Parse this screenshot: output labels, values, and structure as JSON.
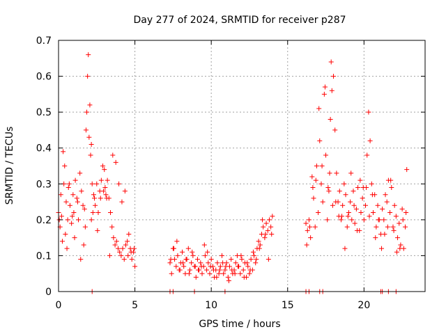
{
  "chart_data": {
    "type": "scatter",
    "title": "Day 277 of 2024, SRMTID for receiver p287",
    "xlabel": "GPS time / hours",
    "ylabel": "SRMTID / TECUs",
    "xlim": [
      0,
      24
    ],
    "ylim": [
      0,
      0.7
    ],
    "xticks": [
      0,
      5,
      10,
      15,
      20
    ],
    "yticks": [
      0,
      0.1,
      0.2,
      0.3,
      0.4,
      0.5,
      0.6,
      0.7
    ],
    "xtick_labels": [
      "0",
      "5",
      "10",
      "15",
      "20"
    ],
    "ytick_labels": [
      "0",
      "0.1",
      "0.2",
      "0.3",
      "0.4",
      "0.5",
      "0.6",
      "0.7"
    ],
    "grid": true,
    "marker": "+",
    "color": "#ff0000",
    "series": [
      {
        "name": "SRMTID",
        "x": [
          0.0,
          0.1,
          0.15,
          0.25,
          0.3,
          0.35,
          0.45,
          0.5,
          0.6,
          0.65,
          0.75,
          0.85,
          0.95,
          1.0,
          1.1,
          1.2,
          1.3,
          1.4,
          1.5,
          1.6,
          1.7,
          1.8,
          1.85,
          1.9,
          1.95,
          2.0,
          2.05,
          2.1,
          2.15,
          2.2,
          2.25,
          2.3,
          2.4,
          2.5,
          2.6,
          2.7,
          2.8,
          2.9,
          3.0,
          3.05,
          3.1,
          3.2,
          3.3,
          3.4,
          3.5,
          3.6,
          3.7,
          3.8,
          3.9,
          4.0,
          4.1,
          4.2,
          4.3,
          4.4,
          4.5,
          4.6,
          4.7,
          4.8,
          4.9,
          5.0,
          7.3,
          7.4,
          7.5,
          7.6,
          7.7,
          7.8,
          7.9,
          8.0,
          8.1,
          8.2,
          8.3,
          8.4,
          8.5,
          8.6,
          8.7,
          8.8,
          8.9,
          9.0,
          9.1,
          9.2,
          9.3,
          9.4,
          9.5,
          9.6,
          9.7,
          9.8,
          9.9,
          10.0,
          10.1,
          10.2,
          10.3,
          10.4,
          10.5,
          10.6,
          10.7,
          10.8,
          10.9,
          11.0,
          11.1,
          11.2,
          11.3,
          11.4,
          11.5,
          11.6,
          11.7,
          11.8,
          11.9,
          12.0,
          12.1,
          12.2,
          12.3,
          12.4,
          12.5,
          12.6,
          12.7,
          12.8,
          12.9,
          13.0,
          13.1,
          13.2,
          13.3,
          13.4,
          13.5,
          13.6,
          13.7,
          13.8,
          13.9,
          14.0,
          16.2,
          16.3,
          16.4,
          16.5,
          16.6,
          16.7,
          16.8,
          16.9,
          17.0,
          17.1,
          17.2,
          17.3,
          17.4,
          17.5,
          17.6,
          17.7,
          17.75,
          17.8,
          17.85,
          17.9,
          18.0,
          18.1,
          18.2,
          18.3,
          18.4,
          18.5,
          18.6,
          18.7,
          18.8,
          18.9,
          19.0,
          19.1,
          19.2,
          19.3,
          19.4,
          19.5,
          19.6,
          19.7,
          19.8,
          19.9,
          20.0,
          20.1,
          20.2,
          20.3,
          20.4,
          20.5,
          20.6,
          20.7,
          20.8,
          20.9,
          21.0,
          21.1,
          21.2,
          21.3,
          21.4,
          21.5,
          21.6,
          21.7,
          21.8,
          21.9,
          22.0,
          22.1,
          22.2,
          22.3,
          22.4,
          22.5,
          22.6,
          22.7,
          22.8,
          0.05,
          0.2,
          0.4,
          0.55,
          0.7,
          0.9,
          1.05,
          1.25,
          1.45,
          1.65,
          1.75,
          2.15,
          2.35,
          2.55,
          2.75,
          2.95,
          3.15,
          3.35,
          3.55,
          3.75,
          3.95,
          4.15,
          4.35,
          4.55,
          4.75,
          4.95,
          7.35,
          7.55,
          7.75,
          7.95,
          8.15,
          8.35,
          8.55,
          8.75,
          8.95,
          9.15,
          9.35,
          9.55,
          9.75,
          9.95,
          10.15,
          10.35,
          10.55,
          10.75,
          10.95,
          11.15,
          11.35,
          11.55,
          11.75,
          11.95,
          12.15,
          12.35,
          12.55,
          12.75,
          12.95,
          13.15,
          13.35,
          13.55,
          13.75,
          13.95,
          16.25,
          16.45,
          16.65,
          16.85,
          17.05,
          17.25,
          17.45,
          17.65,
          17.95,
          18.15,
          18.35,
          18.55,
          18.75,
          18.95,
          19.15,
          19.35,
          19.55,
          19.75,
          19.95,
          20.15,
          20.35,
          20.55,
          20.75,
          20.95,
          21.15,
          21.35,
          21.55,
          21.75,
          21.95,
          22.15,
          22.35,
          22.55,
          22.75,
          2.2,
          7.3,
          7.5,
          8.9,
          10.9,
          16.2,
          16.4,
          17.1,
          17.3,
          21.1,
          21.2,
          21.6,
          22.1
        ],
        "y": [
          0.22,
          0.18,
          0.27,
          0.14,
          0.39,
          0.3,
          0.16,
          0.25,
          0.2,
          0.29,
          0.24,
          0.19,
          0.27,
          0.22,
          0.31,
          0.26,
          0.2,
          0.33,
          0.28,
          0.24,
          0.23,
          0.45,
          0.5,
          0.6,
          0.66,
          0.43,
          0.52,
          0.38,
          0.41,
          0.3,
          0.22,
          0.27,
          0.24,
          0.3,
          0.22,
          0.28,
          0.31,
          0.35,
          0.34,
          0.29,
          0.27,
          0.31,
          0.26,
          0.22,
          0.18,
          0.15,
          0.13,
          0.14,
          0.12,
          0.11,
          0.1,
          0.12,
          0.09,
          0.13,
          0.14,
          0.16,
          0.12,
          0.09,
          0.11,
          0.07,
          0.08,
          0.05,
          0.12,
          0.09,
          0.07,
          0.1,
          0.06,
          0.08,
          0.11,
          0.07,
          0.05,
          0.09,
          0.12,
          0.06,
          0.08,
          0.1,
          0.07,
          0.04,
          0.09,
          0.06,
          0.08,
          0.05,
          0.07,
          0.1,
          0.06,
          0.08,
          0.05,
          0.09,
          0.07,
          0.04,
          0.06,
          0.08,
          0.05,
          0.07,
          0.1,
          0.05,
          0.06,
          0.08,
          0.04,
          0.07,
          0.09,
          0.05,
          0.06,
          0.08,
          0.1,
          0.07,
          0.05,
          0.09,
          0.06,
          0.08,
          0.04,
          0.07,
          0.05,
          0.09,
          0.06,
          0.1,
          0.08,
          0.12,
          0.14,
          0.13,
          0.16,
          0.18,
          0.15,
          0.19,
          0.17,
          0.2,
          0.18,
          0.21,
          0.19,
          0.17,
          0.2,
          0.15,
          0.32,
          0.26,
          0.18,
          0.35,
          0.22,
          0.42,
          0.3,
          0.25,
          0.55,
          0.38,
          0.2,
          0.28,
          0.33,
          0.48,
          0.64,
          0.56,
          0.6,
          0.45,
          0.33,
          0.25,
          0.28,
          0.2,
          0.24,
          0.3,
          0.27,
          0.18,
          0.22,
          0.25,
          0.2,
          0.28,
          0.19,
          0.23,
          0.29,
          0.17,
          0.22,
          0.26,
          0.2,
          0.24,
          0.38,
          0.5,
          0.42,
          0.3,
          0.22,
          0.27,
          0.18,
          0.24,
          0.2,
          0.16,
          0.23,
          0.2,
          0.27,
          0.25,
          0.31,
          0.22,
          0.29,
          0.18,
          0.24,
          0.21,
          0.15,
          0.19,
          0.13,
          0.23,
          0.12,
          0.18,
          0.34,
          0.2,
          0.21,
          0.35,
          0.12,
          0.3,
          0.21,
          0.15,
          0.25,
          0.09,
          0.13,
          0.18,
          0.2,
          0.26,
          0.17,
          0.26,
          0.28,
          0.26,
          0.1,
          0.38,
          0.36,
          0.3,
          0.25,
          0.28,
          0.1,
          0.11,
          0.12,
          0.09,
          0.12,
          0.14,
          0.06,
          0.08,
          0.09,
          0.05,
          0.11,
          0.07,
          0.06,
          0.07,
          0.13,
          0.11,
          0.07,
          0.06,
          0.04,
          0.06,
          0.08,
          0.07,
          0.03,
          0.06,
          0.05,
          0.07,
          0.1,
          0.04,
          0.08,
          0.06,
          0.11,
          0.09,
          0.12,
          0.2,
          0.16,
          0.09,
          0.16,
          0.13,
          0.18,
          0.29,
          0.31,
          0.51,
          0.35,
          0.57,
          0.29,
          0.24,
          0.25,
          0.21,
          0.21,
          0.12,
          0.21,
          0.33,
          0.24,
          0.17,
          0.31,
          0.29,
          0.29,
          0.21,
          0.27,
          0.15,
          0.2,
          0.12,
          0.16,
          0.18,
          0.31,
          0.17,
          0.11,
          0.12,
          0.2,
          0.22,
          0.0,
          0.0,
          0.0,
          0.0,
          0.0,
          0.0,
          0.0,
          0.0,
          0.0,
          0.0,
          0.0,
          0.0,
          0.0
        ]
      }
    ]
  }
}
